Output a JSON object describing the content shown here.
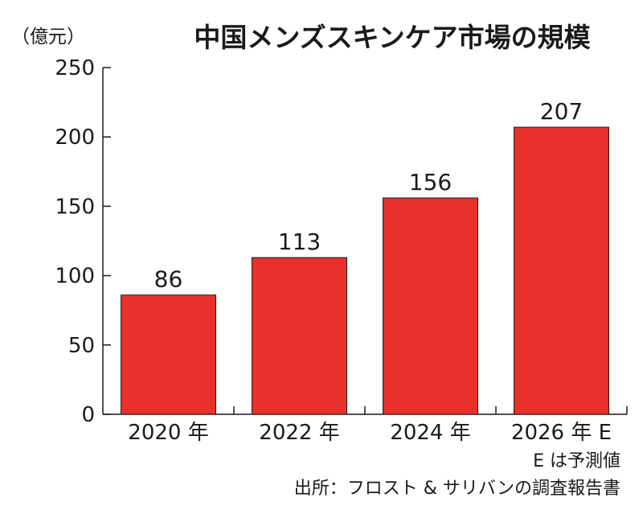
{
  "chart_data": {
    "type": "bar",
    "title": "中国メンズスキンケア市場の規模",
    "unit_label": "（億元）",
    "categories": [
      "2020 年",
      "2022 年",
      "2024 年",
      "2026 年 E"
    ],
    "values": [
      86,
      113,
      156,
      207
    ],
    "data_labels": [
      "86",
      "113",
      "156",
      "207"
    ],
    "ylim": [
      0,
      250
    ],
    "yticks": [
      0,
      50,
      100,
      150,
      200,
      250
    ],
    "ytick_labels": [
      "0",
      "50",
      "100",
      "150",
      "200",
      "250"
    ],
    "bar_color": "#e8312a",
    "grid": false,
    "legend": "none",
    "notes": [
      "E は予測値",
      "出所：フロスト & サリバンの調査報告書"
    ]
  }
}
